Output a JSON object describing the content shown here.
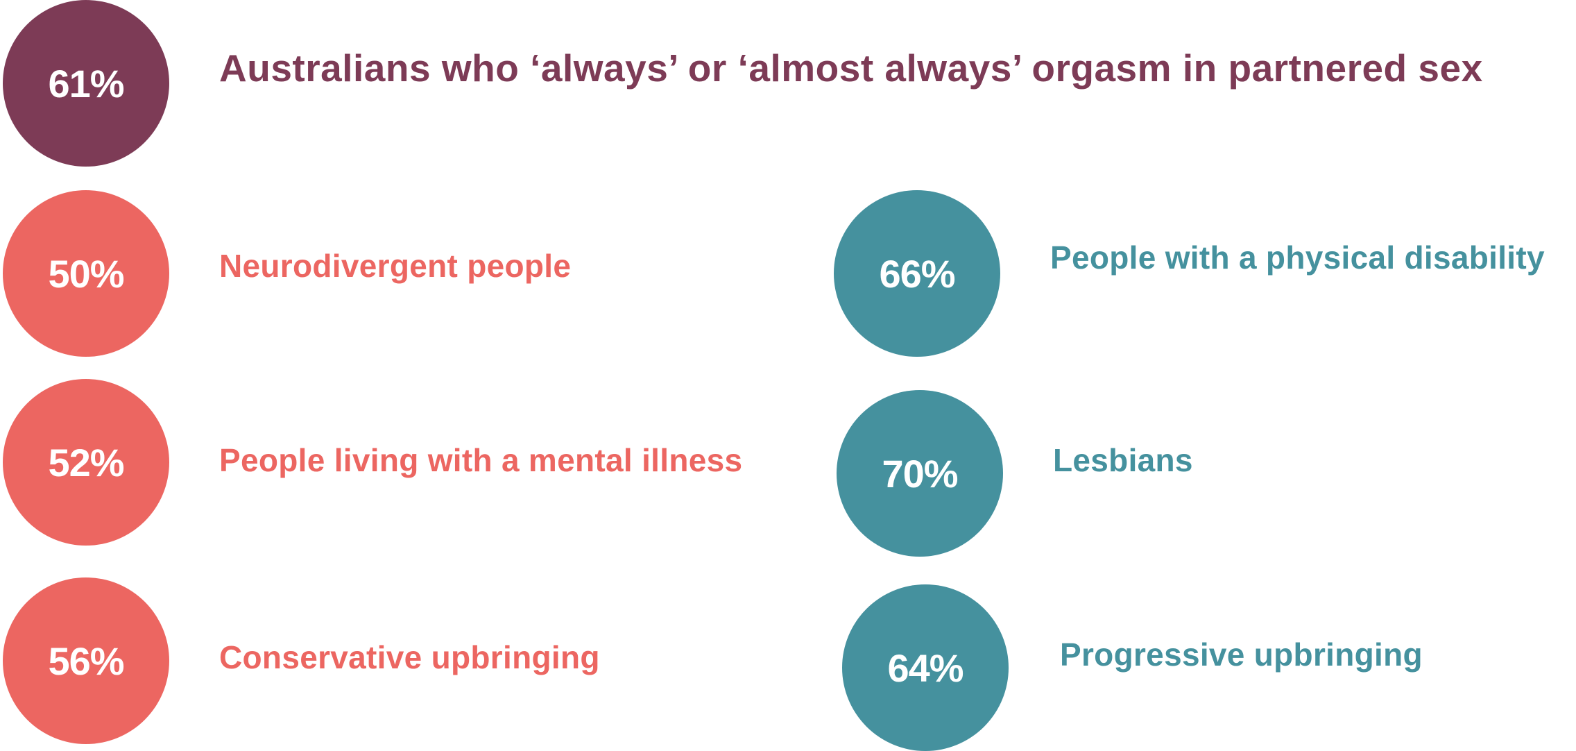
{
  "headline": {
    "value": "61%",
    "label": "Australians who ‘always’ or ‘almost always’ orgasm in partnered sex",
    "color": "#7d3b56"
  },
  "left_column": {
    "color": "#ec6661",
    "items": [
      {
        "value": "50%",
        "label": "Neurodivergent people"
      },
      {
        "value": "52%",
        "label": "People living with a mental illness"
      },
      {
        "value": "56%",
        "label": "Conservative upbringing"
      }
    ]
  },
  "right_column": {
    "color": "#45919e",
    "items": [
      {
        "value": "66%",
        "label": "People with a physical disability"
      },
      {
        "value": "70%",
        "label": "Lesbians"
      },
      {
        "value": "64%",
        "label": "Progressive upbringing"
      }
    ]
  }
}
